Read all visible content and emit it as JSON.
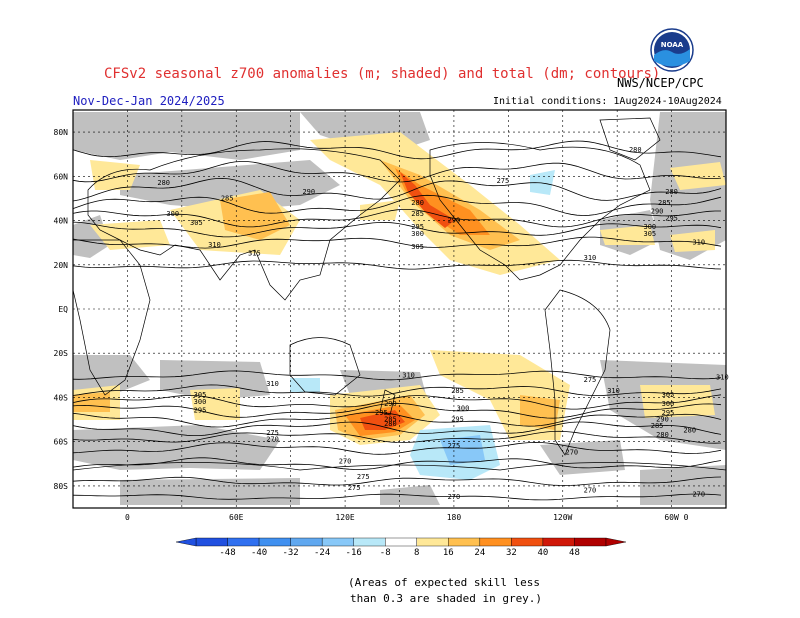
{
  "header": {
    "title": "CFSv2 seasonal z700 anomalies (m; shaded) and total (dm; contours)",
    "org": "NWS/NCEP/CPC",
    "period": "Nov-Dec-Jan 2024/2025",
    "init": "Initial conditions: 1Aug2024-10Aug2024",
    "logo_text": "NOAA"
  },
  "map": {
    "lat_labels": [
      "80N",
      "60N",
      "40N",
      "20N",
      "EQ",
      "20S",
      "40S",
      "60S",
      "80S"
    ],
    "lon_labels": [
      "0",
      "60E",
      "120E",
      "180",
      "120W",
      "60W",
      "0"
    ],
    "contour_labels": [
      {
        "text": "280",
        "lon": -80,
        "lat": 72
      },
      {
        "text": "280",
        "lon": 20,
        "lat": 57
      },
      {
        "text": "285",
        "lon": 55,
        "lat": 50
      },
      {
        "text": "290",
        "lon": 100,
        "lat": 53
      },
      {
        "text": "300",
        "lon": 25,
        "lat": 43
      },
      {
        "text": "305",
        "lon": 38,
        "lat": 39
      },
      {
        "text": "310",
        "lon": 48,
        "lat": 29
      },
      {
        "text": "315",
        "lon": 70,
        "lat": 25
      },
      {
        "text": "280",
        "lon": 160,
        "lat": 48
      },
      {
        "text": "285",
        "lon": 160,
        "lat": 43
      },
      {
        "text": "295",
        "lon": 160,
        "lat": 37
      },
      {
        "text": "300",
        "lon": 160,
        "lat": 34
      },
      {
        "text": "305",
        "lon": 160,
        "lat": 28
      },
      {
        "text": "290",
        "lon": 180,
        "lat": 40
      },
      {
        "text": "275",
        "lon": -153,
        "lat": 58
      },
      {
        "text": "280",
        "lon": -60,
        "lat": 53
      },
      {
        "text": "285",
        "lon": -64,
        "lat": 48
      },
      {
        "text": "290",
        "lon": -68,
        "lat": 44
      },
      {
        "text": "295",
        "lon": -60,
        "lat": 41
      },
      {
        "text": "300",
        "lon": -72,
        "lat": 37
      },
      {
        "text": "305",
        "lon": -72,
        "lat": 34
      },
      {
        "text": "310",
        "lon": -45,
        "lat": 30
      },
      {
        "text": "310",
        "lon": -105,
        "lat": 23
      },
      {
        "text": "275",
        "lon": -105,
        "lat": -32
      },
      {
        "text": "310",
        "lon": -32,
        "lat": -31
      },
      {
        "text": "310",
        "lon": -92,
        "lat": -37
      },
      {
        "text": "310",
        "lon": 80,
        "lat": -34
      },
      {
        "text": "310",
        "lon": 155,
        "lat": -30
      },
      {
        "text": "305",
        "lon": -62,
        "lat": -39
      },
      {
        "text": "300",
        "lon": -62,
        "lat": -43
      },
      {
        "text": "295",
        "lon": -62,
        "lat": -47
      },
      {
        "text": "290",
        "lon": -65,
        "lat": -50
      },
      {
        "text": "285",
        "lon": -68,
        "lat": -53
      },
      {
        "text": "280",
        "lon": -65,
        "lat": -57
      },
      {
        "text": "305",
        "lon": 40,
        "lat": -39
      },
      {
        "text": "300",
        "lon": 40,
        "lat": -42
      },
      {
        "text": "295",
        "lon": 40,
        "lat": -46
      },
      {
        "text": "290",
        "lon": 145,
        "lat": -43
      },
      {
        "text": "295",
        "lon": 140,
        "lat": -47
      },
      {
        "text": "285",
        "lon": 145,
        "lat": -50
      },
      {
        "text": "280",
        "lon": 145,
        "lat": -52
      },
      {
        "text": "275",
        "lon": 80,
        "lat": -56
      },
      {
        "text": "270",
        "lon": 80,
        "lat": -59
      },
      {
        "text": "300",
        "lon": -175,
        "lat": -45
      },
      {
        "text": "295",
        "lon": -178,
        "lat": -50
      },
      {
        "text": "285",
        "lon": -178,
        "lat": -37
      },
      {
        "text": "275",
        "lon": 180,
        "lat": -62
      },
      {
        "text": "270",
        "lon": -115,
        "lat": -65
      },
      {
        "text": "270",
        "lon": 120,
        "lat": -69
      },
      {
        "text": "275",
        "lon": 130,
        "lat": -76
      },
      {
        "text": "275",
        "lon": 125,
        "lat": -81
      },
      {
        "text": "270",
        "lon": -180,
        "lat": -85
      },
      {
        "text": "270",
        "lon": -105,
        "lat": -82
      },
      {
        "text": "270",
        "lon": -45,
        "lat": -84
      },
      {
        "text": "280",
        "lon": -50,
        "lat": -55
      }
    ]
  },
  "colorbar": {
    "labels": [
      "-48",
      "-40",
      "-32",
      "-24",
      "-16",
      "-8",
      "8",
      "16",
      "24",
      "32",
      "40",
      "48"
    ],
    "colors": [
      "#2050e0",
      "#3070f0",
      "#4090f0",
      "#60a8f0",
      "#88c8f8",
      "#b8e8f8",
      "#ffffff",
      "#ffe898",
      "#ffc050",
      "#ff9020",
      "#f05010",
      "#d01808",
      "#b00000"
    ]
  },
  "footer": {
    "note_line1": "(Areas of expected skill less",
    "note_line2": "than 0.3 are shaded in grey.)"
  }
}
